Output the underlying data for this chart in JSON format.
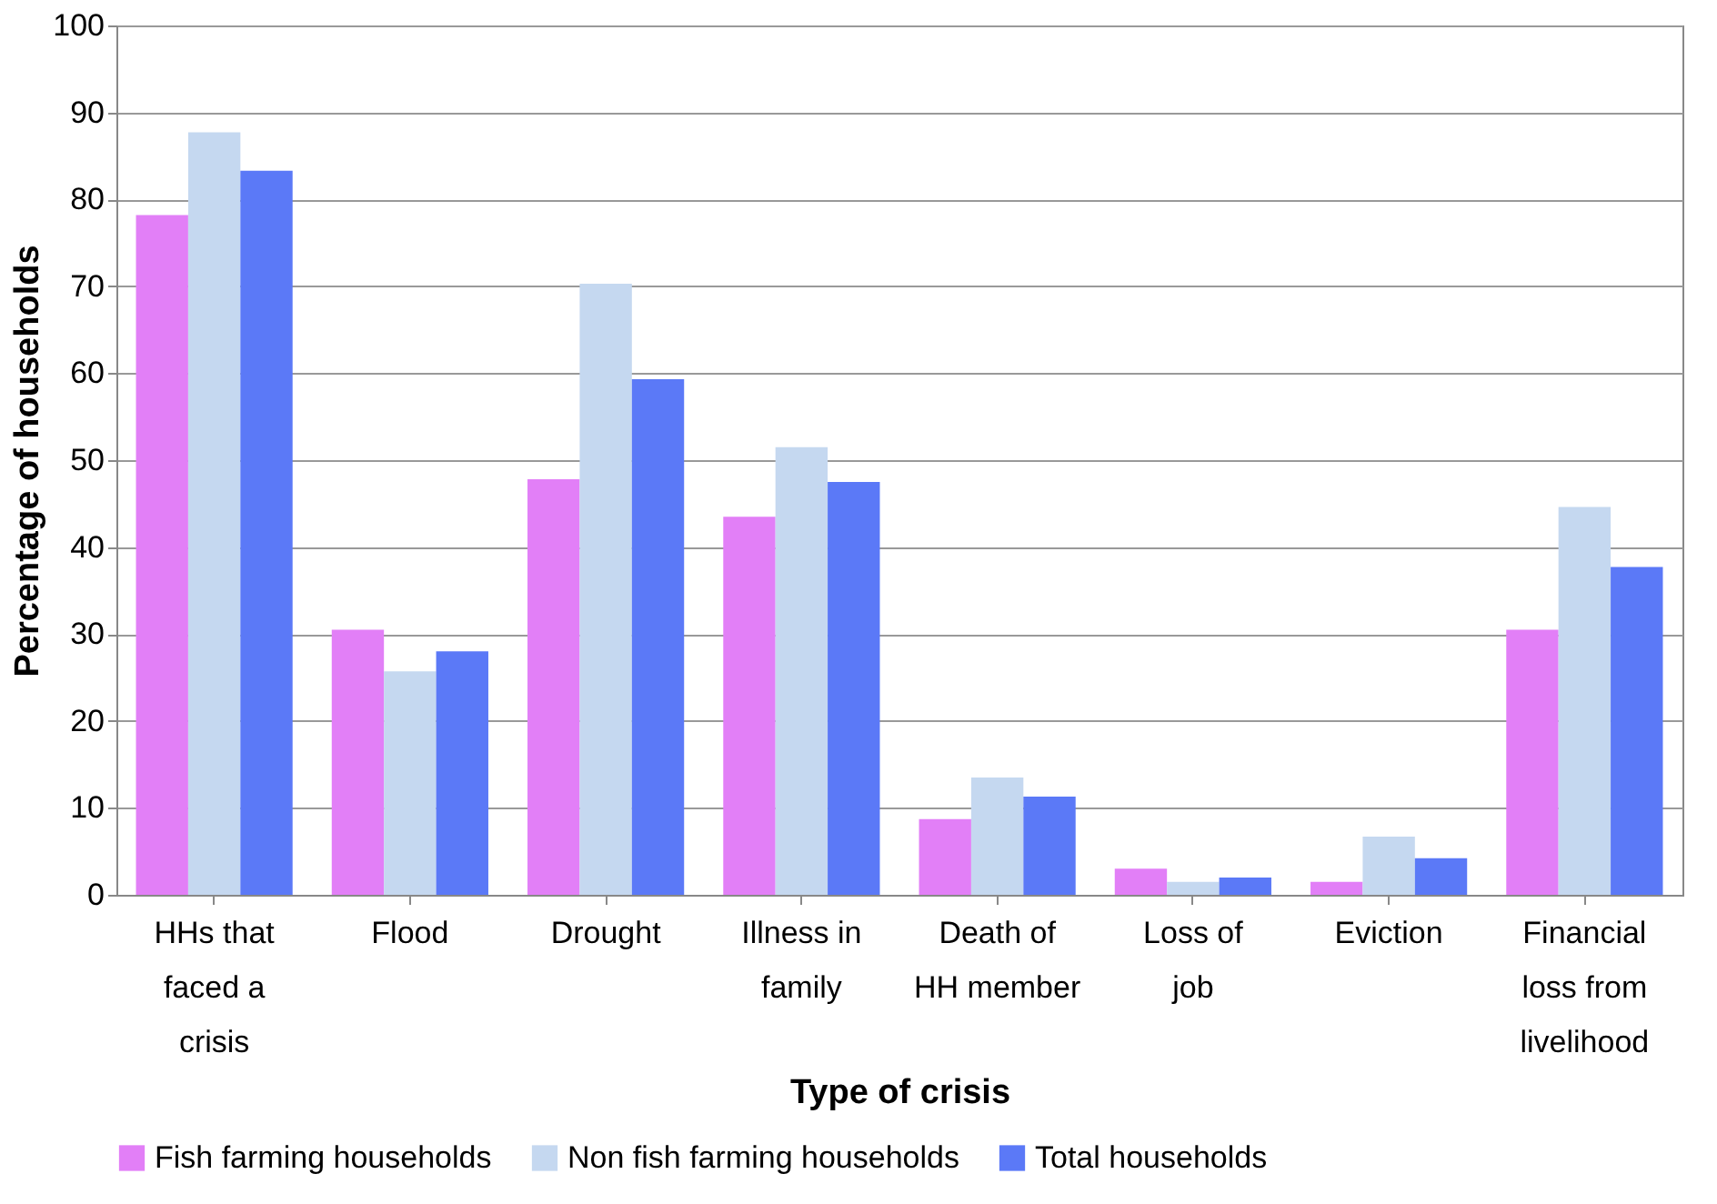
{
  "chart_data": {
    "type": "bar",
    "xlabel": "Type of crisis",
    "ylabel": "Percentage of households",
    "categories": [
      "HHs that faced a crisis",
      "Flood",
      "Drought",
      "Illness in family",
      "Death of HH member",
      "Loss of job",
      "Eviction",
      "Financial loss from livelihood"
    ],
    "series": [
      {
        "name": "Fish farming households",
        "color": "#e27ff7",
        "values": [
          78.2,
          30.5,
          47.8,
          43.5,
          8.7,
          3,
          1.5,
          30.5
        ]
      },
      {
        "name": "Non fish farming households",
        "color": "#c5d8f0",
        "values": [
          87.7,
          25.7,
          70.3,
          51.5,
          13.5,
          1.5,
          6.7,
          44.6
        ]
      },
      {
        "name": "Total households",
        "color": "#5b79f7",
        "values": [
          83.3,
          28,
          59.3,
          47.5,
          11.3,
          2,
          4.2,
          37.7
        ]
      }
    ],
    "ylim": [
      0,
      100
    ],
    "yticks": [
      0,
      10,
      20,
      30,
      40,
      50,
      60,
      70,
      80,
      90,
      100
    ],
    "grid": "y",
    "legend": "bottom"
  }
}
